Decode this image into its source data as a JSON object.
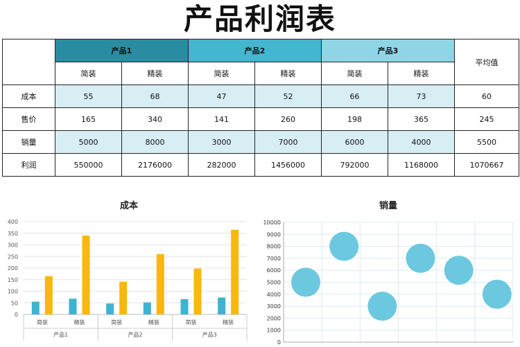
{
  "title": "产品利润表",
  "table": {
    "products": [
      "产品1",
      "产品2",
      "产品3"
    ],
    "subheaders": [
      "简装",
      "精装",
      "简装",
      "精装",
      "简装",
      "精装"
    ],
    "avg_header": "平均值",
    "rows": [
      {
        "label": "成本",
        "values": [
          "55",
          "68",
          "47",
          "52",
          "66",
          "73"
        ],
        "avg": "60"
      },
      {
        "label": "售价",
        "values": [
          "165",
          "340",
          "141",
          "260",
          "198",
          "365"
        ],
        "avg": "245"
      },
      {
        "label": "销量",
        "values": [
          "5000",
          "8000",
          "3000",
          "7000",
          "6000",
          "4000"
        ],
        "avg": "5500"
      },
      {
        "label": "利润",
        "values": [
          "550000",
          "2176000",
          "282000",
          "1456000",
          "792000",
          "1168000"
        ],
        "avg": "1070667"
      }
    ]
  },
  "chart_data": [
    {
      "type": "bar",
      "title": "成本",
      "categories": [
        "简装",
        "精装",
        "简装",
        "精装",
        "简装",
        "精装"
      ],
      "groups": [
        "产品1",
        "产品2",
        "产品3"
      ],
      "series": [
        {
          "values": [
            55,
            68,
            47,
            52,
            66,
            73
          ],
          "color": "#3fb3cf"
        },
        {
          "values": [
            165,
            340,
            141,
            260,
            198,
            365
          ],
          "color": "#f8b80c"
        }
      ],
      "ylim": [
        0,
        400
      ],
      "yticks": [
        "0",
        "50",
        "100",
        "150",
        "200",
        "250",
        "300",
        "350",
        "400"
      ],
      "grid": true
    },
    {
      "type": "scatter",
      "title": "销量",
      "values": [
        5000,
        8000,
        3000,
        7000,
        6000,
        4000
      ],
      "ylim": [
        0,
        10000
      ],
      "yticks": [
        "0",
        "1000",
        "2000",
        "3000",
        "4000",
        "5000",
        "6000",
        "7000",
        "8000",
        "9000",
        "10000"
      ],
      "color": "#5fc3dc",
      "grid": true
    }
  ]
}
